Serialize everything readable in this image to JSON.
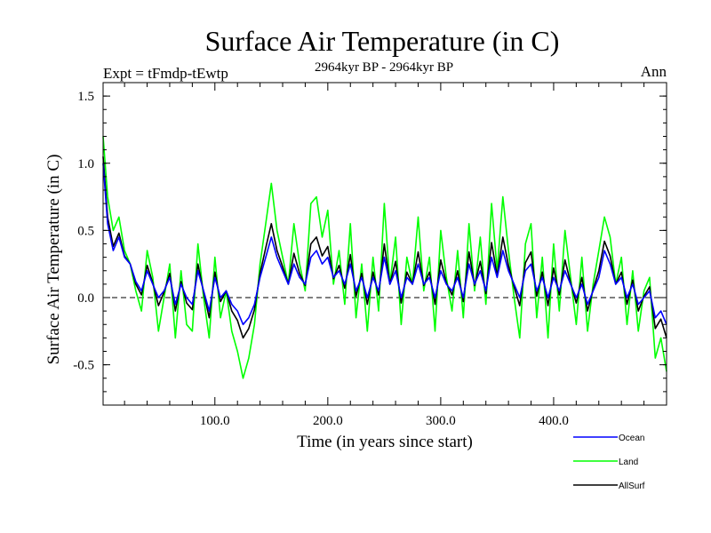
{
  "chart_data": {
    "type": "line",
    "title": "Surface Air Temperature (in C)",
    "subtitle": "2964kyr BP - 2964kyr BP",
    "expt_label": "Expt = tFmdp-tEwtp",
    "season_label": "Ann",
    "xlabel": "Time (in years since start)",
    "ylabel": "Surface Air Temperature (in C)",
    "xlim": [
      1,
      500
    ],
    "ylim": [
      -0.8,
      1.6
    ],
    "x_ticks": [
      100,
      200,
      300,
      400
    ],
    "x_tick_labels": [
      "100.0",
      "200.0",
      "300.0",
      "400.0"
    ],
    "y_ticks": [
      -0.5,
      0.0,
      0.5,
      1.0,
      1.5
    ],
    "y_tick_labels": [
      "-0.5",
      "0.0",
      "0.5",
      "1.0",
      "1.5"
    ],
    "zero_line": "dashed",
    "legend_position": "bottom-right",
    "x": [
      1,
      5,
      10,
      15,
      20,
      25,
      30,
      35,
      40,
      45,
      50,
      55,
      60,
      65,
      70,
      75,
      80,
      85,
      90,
      95,
      100,
      105,
      110,
      115,
      120,
      125,
      130,
      135,
      140,
      145,
      150,
      155,
      160,
      165,
      170,
      175,
      180,
      185,
      190,
      195,
      200,
      205,
      210,
      215,
      220,
      225,
      230,
      235,
      240,
      245,
      250,
      255,
      260,
      265,
      270,
      275,
      280,
      285,
      290,
      295,
      300,
      305,
      310,
      315,
      320,
      325,
      330,
      335,
      340,
      345,
      350,
      355,
      360,
      365,
      370,
      375,
      380,
      385,
      390,
      395,
      400,
      405,
      410,
      415,
      420,
      425,
      430,
      435,
      440,
      445,
      450,
      455,
      460,
      465,
      470,
      475,
      480,
      485,
      490,
      495,
      500
    ],
    "series": [
      {
        "name": "Ocean",
        "color": "#0000ff",
        "values": [
          1.0,
          0.55,
          0.35,
          0.45,
          0.3,
          0.25,
          0.12,
          0.05,
          0.2,
          0.1,
          0.0,
          0.05,
          0.15,
          -0.05,
          0.1,
          0.0,
          -0.05,
          0.2,
          0.05,
          -0.1,
          0.15,
          0.0,
          0.05,
          -0.05,
          -0.1,
          -0.2,
          -0.15,
          -0.05,
          0.15,
          0.3,
          0.45,
          0.3,
          0.2,
          0.1,
          0.25,
          0.15,
          0.1,
          0.3,
          0.35,
          0.25,
          0.3,
          0.15,
          0.2,
          0.1,
          0.25,
          0.05,
          0.15,
          0.0,
          0.15,
          0.05,
          0.3,
          0.1,
          0.2,
          0.0,
          0.15,
          0.1,
          0.25,
          0.1,
          0.15,
          0.0,
          0.2,
          0.1,
          0.05,
          0.15,
          0.0,
          0.25,
          0.1,
          0.2,
          0.05,
          0.3,
          0.15,
          0.35,
          0.2,
          0.1,
          0.0,
          0.2,
          0.25,
          0.05,
          0.15,
          0.0,
          0.15,
          0.05,
          0.2,
          0.1,
          0.0,
          0.1,
          -0.05,
          0.05,
          0.15,
          0.35,
          0.25,
          0.1,
          0.15,
          0.0,
          0.1,
          -0.05,
          0.0,
          0.05,
          -0.15,
          -0.1,
          -0.2
        ]
      },
      {
        "name": "Land",
        "color": "#00ff00",
        "values": [
          1.2,
          0.75,
          0.5,
          0.6,
          0.35,
          0.25,
          0.05,
          -0.1,
          0.35,
          0.15,
          -0.25,
          0.0,
          0.25,
          -0.3,
          0.2,
          -0.2,
          -0.25,
          0.4,
          0.0,
          -0.3,
          0.3,
          -0.15,
          0.05,
          -0.25,
          -0.4,
          -0.6,
          -0.45,
          -0.2,
          0.25,
          0.55,
          0.85,
          0.5,
          0.3,
          0.1,
          0.55,
          0.25,
          0.05,
          0.7,
          0.75,
          0.45,
          0.65,
          0.1,
          0.35,
          -0.05,
          0.55,
          -0.15,
          0.25,
          -0.25,
          0.3,
          -0.1,
          0.7,
          0.1,
          0.45,
          -0.2,
          0.3,
          0.1,
          0.6,
          0.05,
          0.3,
          -0.25,
          0.5,
          0.15,
          -0.1,
          0.35,
          -0.15,
          0.55,
          0.05,
          0.45,
          -0.05,
          0.7,
          0.2,
          0.75,
          0.35,
          0.0,
          -0.3,
          0.4,
          0.55,
          -0.15,
          0.3,
          -0.3,
          0.4,
          -0.1,
          0.5,
          0.15,
          -0.2,
          0.3,
          -0.25,
          0.1,
          0.35,
          0.6,
          0.45,
          0.1,
          0.3,
          -0.2,
          0.2,
          -0.25,
          0.05,
          0.15,
          -0.45,
          -0.3,
          -0.55
        ]
      },
      {
        "name": "AllSurf",
        "color": "#000000",
        "values": [
          1.05,
          0.6,
          0.38,
          0.48,
          0.31,
          0.25,
          0.1,
          0.02,
          0.24,
          0.11,
          -0.06,
          0.04,
          0.18,
          -0.1,
          0.12,
          -0.04,
          -0.09,
          0.25,
          0.04,
          -0.15,
          0.19,
          -0.03,
          0.05,
          -0.1,
          -0.17,
          -0.3,
          -0.23,
          -0.09,
          0.18,
          0.37,
          0.55,
          0.35,
          0.23,
          0.1,
          0.33,
          0.18,
          0.09,
          0.4,
          0.45,
          0.31,
          0.38,
          0.14,
          0.24,
          0.07,
          0.32,
          0.01,
          0.18,
          -0.05,
          0.19,
          0.02,
          0.4,
          0.1,
          0.27,
          -0.04,
          0.19,
          0.1,
          0.34,
          0.09,
          0.19,
          -0.05,
          0.28,
          0.11,
          0.02,
          0.2,
          -0.03,
          0.34,
          0.09,
          0.27,
          0.03,
          0.41,
          0.16,
          0.45,
          0.24,
          0.08,
          -0.06,
          0.26,
          0.34,
          0.01,
          0.19,
          -0.06,
          0.22,
          0.02,
          0.28,
          0.11,
          -0.04,
          0.15,
          -0.1,
          0.06,
          0.2,
          0.42,
          0.31,
          0.1,
          0.19,
          -0.05,
          0.13,
          -0.1,
          0.01,
          0.08,
          -0.23,
          -0.16,
          -0.3
        ]
      }
    ]
  }
}
